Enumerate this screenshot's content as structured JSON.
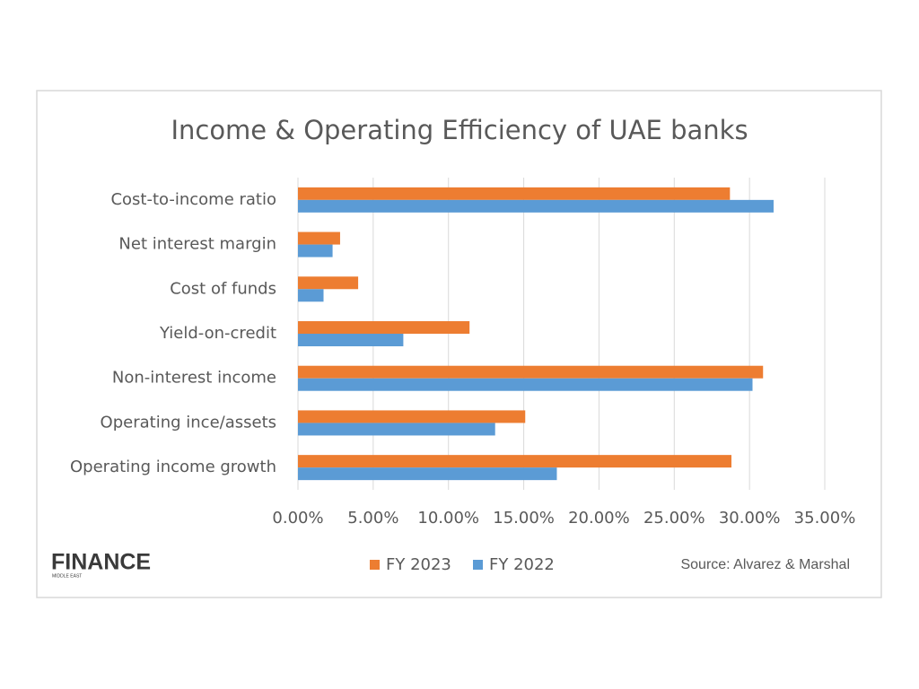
{
  "chart_data": {
    "type": "hbar",
    "title": "Income & Operating Efficiency of UAE banks",
    "categories": [
      "Cost-to-income ratio",
      "Net interest margin",
      "Cost of funds",
      "Yield-on-credit",
      "Non-interest income",
      "Operating ince/assets",
      "Operating income growth"
    ],
    "series": [
      {
        "name": "FY 2023",
        "color": "#ed7d31",
        "values": [
          28.7,
          2.8,
          4.0,
          11.4,
          30.9,
          15.1,
          28.8
        ]
      },
      {
        "name": "FY 2022",
        "color": "#5b9bd5",
        "values": [
          31.6,
          2.3,
          1.7,
          7.0,
          30.2,
          13.1,
          17.2
        ]
      }
    ],
    "xlim": [
      0,
      35
    ],
    "xticks": [
      {
        "value": 0,
        "label": "0.00%"
      },
      {
        "value": 5,
        "label": "5.00%"
      },
      {
        "value": 10,
        "label": "10.00%"
      },
      {
        "value": 15,
        "label": "15.00%"
      },
      {
        "value": 20,
        "label": "20.00%"
      },
      {
        "value": 25,
        "label": "25.00%"
      },
      {
        "value": 30,
        "label": "30.00%"
      },
      {
        "value": 35,
        "label": "35.00%"
      }
    ],
    "grid": true,
    "legend": "bottom",
    "source": "Source: Alvarez & Marshal",
    "logo": {
      "text": "FINANCE",
      "subtext": "MIDDLE EAST"
    }
  }
}
